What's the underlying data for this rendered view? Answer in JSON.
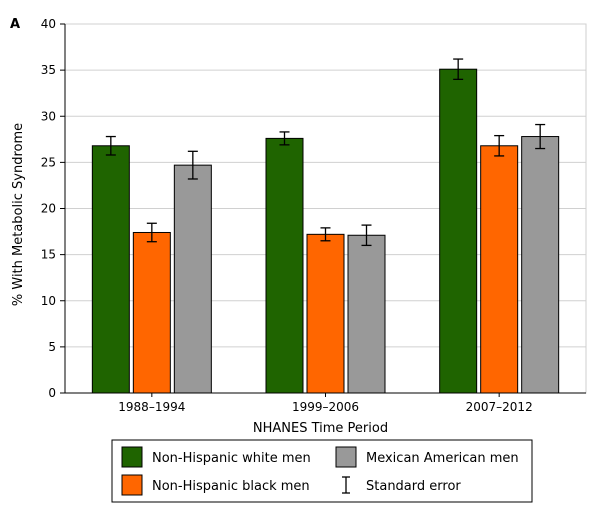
{
  "chart_data": {
    "type": "bar",
    "panel_label": "A",
    "title": "",
    "xlabel": "NHANES Time Period",
    "ylabel": "% With Metabolic Syndrome",
    "ylim": [
      0,
      40
    ],
    "yticks": [
      0,
      5,
      10,
      15,
      20,
      25,
      30,
      35,
      40
    ],
    "grid": true,
    "legend_position": "bottom",
    "categories": [
      "1988–1994",
      "1999–2006",
      "2007–2012"
    ],
    "series": [
      {
        "name": "Non-Hispanic white men",
        "color": "#1f6400",
        "values": [
          26.8,
          27.6,
          35.1
        ],
        "errors": [
          1.0,
          0.7,
          1.1
        ]
      },
      {
        "name": "Non-Hispanic black men",
        "color": "#ff6600",
        "values": [
          17.4,
          17.2,
          26.8
        ],
        "errors": [
          1.0,
          0.7,
          1.1
        ]
      },
      {
        "name": "Mexican American men",
        "color": "#999999",
        "values": [
          24.7,
          17.1,
          27.8
        ],
        "errors": [
          1.5,
          1.1,
          1.3
        ]
      }
    ],
    "legend": {
      "items": [
        {
          "label": "Non-Hispanic white men",
          "series": 0
        },
        {
          "label": "Mexican American men",
          "series": 2
        },
        {
          "label": "Non-Hispanic black men",
          "series": 1
        },
        {
          "label": "Standard error",
          "series": null
        }
      ]
    }
  }
}
